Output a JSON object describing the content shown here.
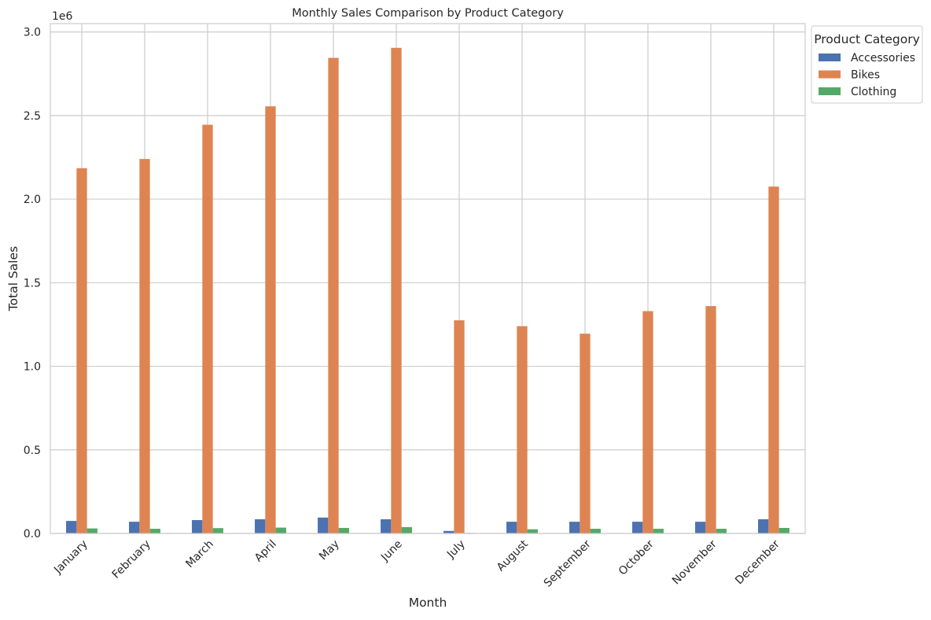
{
  "chart_data": {
    "type": "bar",
    "title": "Monthly Sales Comparison by Product Category",
    "xlabel": "Month",
    "ylabel": "Total Sales",
    "y_offset_label": "1e6",
    "ylim": [
      0,
      3050000
    ],
    "yticks": [
      0,
      500000,
      1000000,
      1500000,
      2000000,
      2500000,
      3000000
    ],
    "ytick_labels": [
      "0.0",
      "0.5",
      "1.0",
      "1.5",
      "2.0",
      "2.5",
      "3.0"
    ],
    "grid": true,
    "legend_title": "Product Category",
    "legend_position": "outside top-right",
    "categories": [
      "January",
      "February",
      "March",
      "April",
      "May",
      "June",
      "July",
      "August",
      "September",
      "October",
      "November",
      "December"
    ],
    "series": [
      {
        "name": "Accessories",
        "color": "#4c72b0",
        "values": [
          75000,
          70000,
          80000,
          85000,
          95000,
          85000,
          15000,
          70000,
          70000,
          70000,
          70000,
          85000
        ]
      },
      {
        "name": "Bikes",
        "color": "#dd8452",
        "values": [
          2185000,
          2240000,
          2445000,
          2555000,
          2845000,
          2905000,
          1275000,
          1240000,
          1195000,
          1330000,
          1360000,
          2075000
        ]
      },
      {
        "name": "Clothing",
        "color": "#55a868",
        "values": [
          30000,
          28000,
          32000,
          35000,
          33000,
          38000,
          3000,
          25000,
          28000,
          28000,
          28000,
          33000
        ]
      }
    ]
  }
}
